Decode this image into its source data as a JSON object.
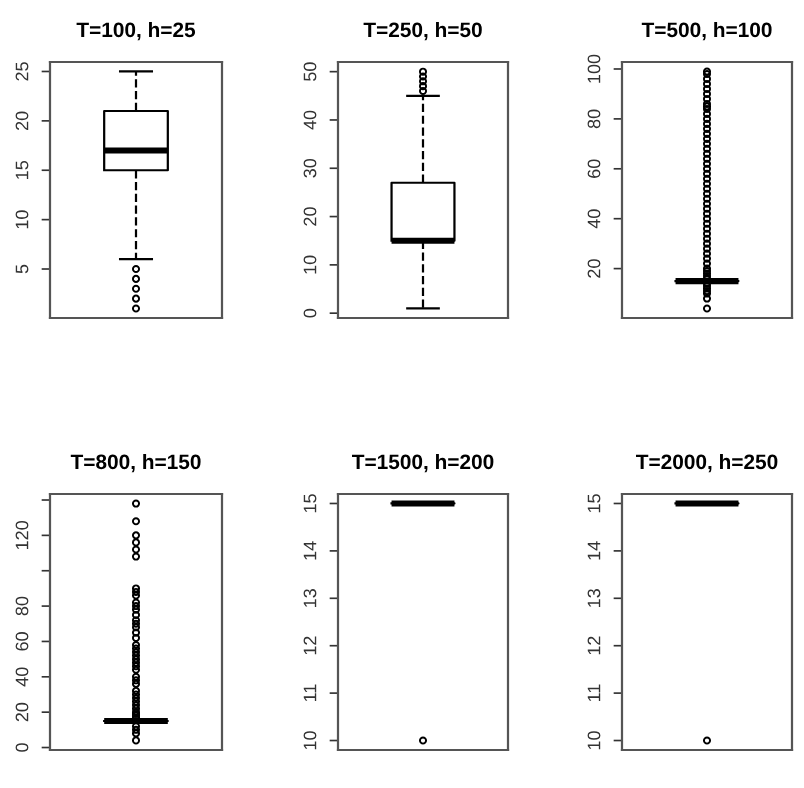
{
  "chart_data": [
    {
      "type": "box",
      "title": "T=100, h=25",
      "categories": [
        null
      ],
      "boxes": [
        {
          "low": 6,
          "q1": 15,
          "median": 17,
          "q3": 21,
          "high": 25,
          "outliers": [
            1,
            2,
            3,
            4,
            5
          ]
        }
      ],
      "ylim": [
        0.04,
        25.96
      ],
      "yticks": [
        5,
        10,
        15,
        20,
        25
      ],
      "line_style": "dashed",
      "marker": "circle"
    },
    {
      "type": "box",
      "title": "T=250, h=50",
      "categories": [
        null
      ],
      "boxes": [
        {
          "low": 1,
          "q1": 15,
          "median": 15,
          "q3": 27,
          "high": 45,
          "outliers": [
            46,
            47,
            48,
            49,
            50
          ]
        }
      ],
      "ylim": [
        -1,
        52
      ],
      "yticks": [
        0,
        10,
        20,
        30,
        40,
        50
      ],
      "line_style": "dashed",
      "marker": "circle"
    },
    {
      "type": "box",
      "title": "T=500, h=100",
      "categories": [
        null
      ],
      "boxes": [
        {
          "low": 15,
          "q1": 15,
          "median": 15,
          "q3": 15,
          "high": 15,
          "outliers": [
            4,
            8,
            10,
            11,
            12,
            13,
            14,
            16,
            17,
            18,
            19,
            20,
            22,
            24,
            26,
            28,
            30,
            32,
            34,
            36,
            38,
            40,
            42,
            44,
            46,
            48,
            50,
            52,
            54,
            56,
            58,
            60,
            62,
            64,
            66,
            68,
            70,
            72,
            74,
            76,
            78,
            80,
            82,
            84,
            85,
            86,
            88,
            90,
            92,
            94,
            96,
            98,
            99
          ]
        }
      ],
      "ylim": [
        0.2,
        102.8
      ],
      "yticks": [
        20,
        40,
        60,
        80,
        100
      ],
      "line_style": "dashed",
      "marker": "circle"
    },
    {
      "type": "box",
      "title": "T=800, h=150",
      "categories": [
        null
      ],
      "boxes": [
        {
          "low": 15,
          "q1": 15,
          "median": 15,
          "q3": 15,
          "high": 15,
          "outliers": [
            4,
            8,
            10,
            12,
            17,
            18,
            19,
            20,
            22,
            24,
            26,
            28,
            30,
            32,
            36,
            38,
            40,
            44,
            46,
            48,
            50,
            52,
            54,
            56,
            58,
            62,
            65,
            68,
            70,
            72,
            75,
            78,
            80,
            82,
            86,
            88,
            90,
            108,
            112,
            116,
            120,
            128,
            138
          ]
        }
      ],
      "ylim": [
        -1.4,
        143.4
      ],
      "yticks": [
        0,
        20,
        40,
        60,
        80,
        {
          "value": 100,
          "label": null
        },
        120,
        {
          "value": 140,
          "label": null
        }
      ],
      "line_style": "dashed",
      "marker": "circle"
    },
    {
      "type": "box",
      "title": "T=1500, h=200",
      "categories": [
        null
      ],
      "boxes": [
        {
          "low": 15,
          "q1": 15,
          "median": 15,
          "q3": 15,
          "high": 15,
          "outliers": [
            10
          ]
        }
      ],
      "ylim": [
        9.8,
        15.2
      ],
      "yticks": [
        10,
        11,
        12,
        13,
        14,
        15
      ],
      "line_style": "dashed",
      "marker": "circle"
    },
    {
      "type": "box",
      "title": "T=2000, h=250",
      "categories": [
        null
      ],
      "boxes": [
        {
          "low": 15,
          "q1": 15,
          "median": 15,
          "q3": 15,
          "high": 15,
          "outliers": [
            10
          ]
        }
      ],
      "ylim": [
        9.8,
        15.2
      ],
      "yticks": [
        10,
        11,
        12,
        13,
        14,
        15
      ],
      "line_style": "dashed",
      "marker": "circle"
    }
  ]
}
